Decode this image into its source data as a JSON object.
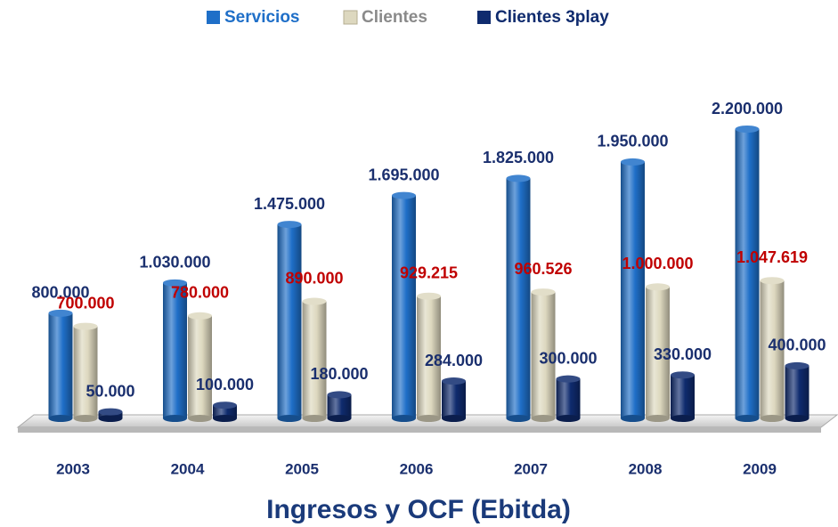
{
  "chart_data": {
    "type": "bar",
    "title": "Ingresos y OCF (Ebitda)",
    "categories": [
      "2003",
      "2004",
      "2005",
      "2006",
      "2007",
      "2008",
      "2009"
    ],
    "series": [
      {
        "name": "Servicios",
        "color": "#1f6fc8",
        "values": [
          800000,
          1030000,
          1475000,
          1695000,
          1825000,
          1950000,
          2200000
        ],
        "value_labels": [
          "800.000",
          "1.030.000",
          "1.475.000",
          "1.695.000",
          "1.825.000",
          "1.950.000",
          "2.200.000"
        ]
      },
      {
        "name": "Clientes",
        "color": "#ddd8bf",
        "values": [
          700000,
          780000,
          890000,
          929215,
          960526,
          1000000,
          1047619
        ],
        "value_labels": [
          "700.000",
          "780.000",
          "890.000",
          "929.215",
          "960.526",
          "1.000.000",
          "1.047.619"
        ]
      },
      {
        "name": "Clientes 3play",
        "color": "#0f2b6e",
        "values": [
          50000,
          100000,
          180000,
          284000,
          300000,
          330000,
          400000
        ],
        "value_labels": [
          "50.000",
          "100.000",
          "180.000",
          "284.000",
          "300.000",
          "330.000",
          "400.000"
        ]
      }
    ],
    "legend": "top"
  }
}
